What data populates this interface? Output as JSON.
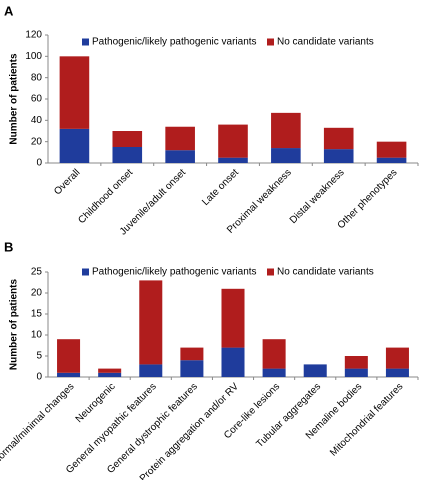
{
  "chart_data": [
    {
      "type": "bar",
      "stacked": true,
      "panel": "A",
      "y_label": "Number of patients",
      "categories": [
        "Overall",
        "Childhood onset",
        "Juvenile/adult onset",
        "Late onset",
        "Proximal weakness",
        "Distal weakness",
        "Other phenotypes"
      ],
      "series": [
        {
          "name": "Pathogenic/likely pathogenic variants",
          "color": "#1f3c9c",
          "values": [
            32,
            15,
            12,
            5,
            14,
            13,
            5
          ]
        },
        {
          "name": "No candidate variants",
          "color": "#b01d1d",
          "values": [
            68,
            15,
            22,
            31,
            33,
            20,
            15
          ]
        }
      ],
      "ylim": [
        0,
        120
      ],
      "yticks": [
        0,
        20,
        40,
        60,
        80,
        100,
        120
      ]
    },
    {
      "type": "bar",
      "stacked": true,
      "panel": "B",
      "y_label": "Number of patients",
      "categories": [
        "Normal/minimal changes",
        "Neurogenic",
        "General myopathic features",
        "General dystrophic features",
        "Protein aggregation and/or RV",
        "Core-like lesions",
        "Tubular aggregates",
        "Nemaline bodies",
        "Mitochondrial features"
      ],
      "series": [
        {
          "name": "Pathogenic/likely pathogenic variants",
          "color": "#1f3c9c",
          "values": [
            1,
            1,
            3,
            4,
            7,
            2,
            3,
            2,
            2
          ]
        },
        {
          "name": "No candidate variants",
          "color": "#b01d1d",
          "values": [
            8,
            1,
            20,
            3,
            14,
            7,
            0,
            3,
            5
          ]
        }
      ],
      "ylim": [
        0,
        25
      ],
      "yticks": [
        0,
        5,
        10,
        15,
        20,
        25
      ]
    }
  ]
}
